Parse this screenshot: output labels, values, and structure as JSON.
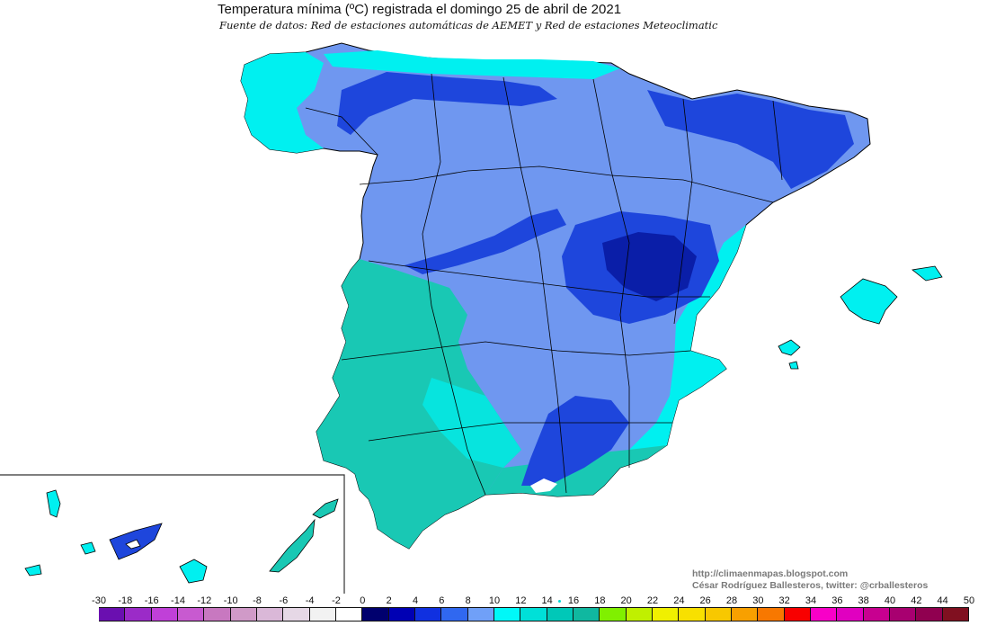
{
  "header": {
    "title": "Temperatura mínima (ºC) registrada el domingo 25 de abril de 2021",
    "subtitle": "Fuente de datos: Red de estaciones automáticas de AEMET y Red de estaciones Meteoclimatic"
  },
  "credits": {
    "blog": "http://climaenmapas.blogspot.com",
    "author": "César Rodríguez Ballesteros, twitter: @crballesteros"
  },
  "legend": {
    "labels": [
      "-30",
      "-18",
      "-16",
      "-14",
      "-12",
      "-10",
      "-8",
      "-6",
      "-4",
      "-2",
      "0",
      "2",
      "4",
      "6",
      "8",
      "10",
      "12",
      "14",
      "16",
      "18",
      "20",
      "22",
      "24",
      "26",
      "28",
      "30",
      "32",
      "34",
      "36",
      "38",
      "40",
      "42",
      "44",
      "50"
    ],
    "colors": [
      "#6a0fb0",
      "#9b2bc8",
      "#c040d8",
      "#c85ad0",
      "#c878c0",
      "#d09ac8",
      "#dab8d8",
      "#e6d8e6",
      "#f2f2f2",
      "#ffffff",
      "#00006e",
      "#0000b4",
      "#1030e0",
      "#3068f0",
      "#70a0f8",
      "#00f8f8",
      "#00e0d8",
      "#00c8b8",
      "#10b8a0",
      "#80f000",
      "#c0f000",
      "#f0f000",
      "#f8e000",
      "#f8c800",
      "#f8a000",
      "#f87800",
      "#f80000",
      "#f800c8",
      "#e000c0",
      "#c80090",
      "#a80070",
      "#900050",
      "#801020"
    ]
  },
  "map": {
    "palette": {
      "sea": "#ffffff",
      "border": "#000000",
      "very_cold": "#0a1ea8",
      "cold": "#1e46dc",
      "cool": "#6f97f0",
      "mild": "#00f0f0",
      "warm": "#19c8b4",
      "teal": "#12b4a0",
      "snow": "#ffffff"
    }
  }
}
